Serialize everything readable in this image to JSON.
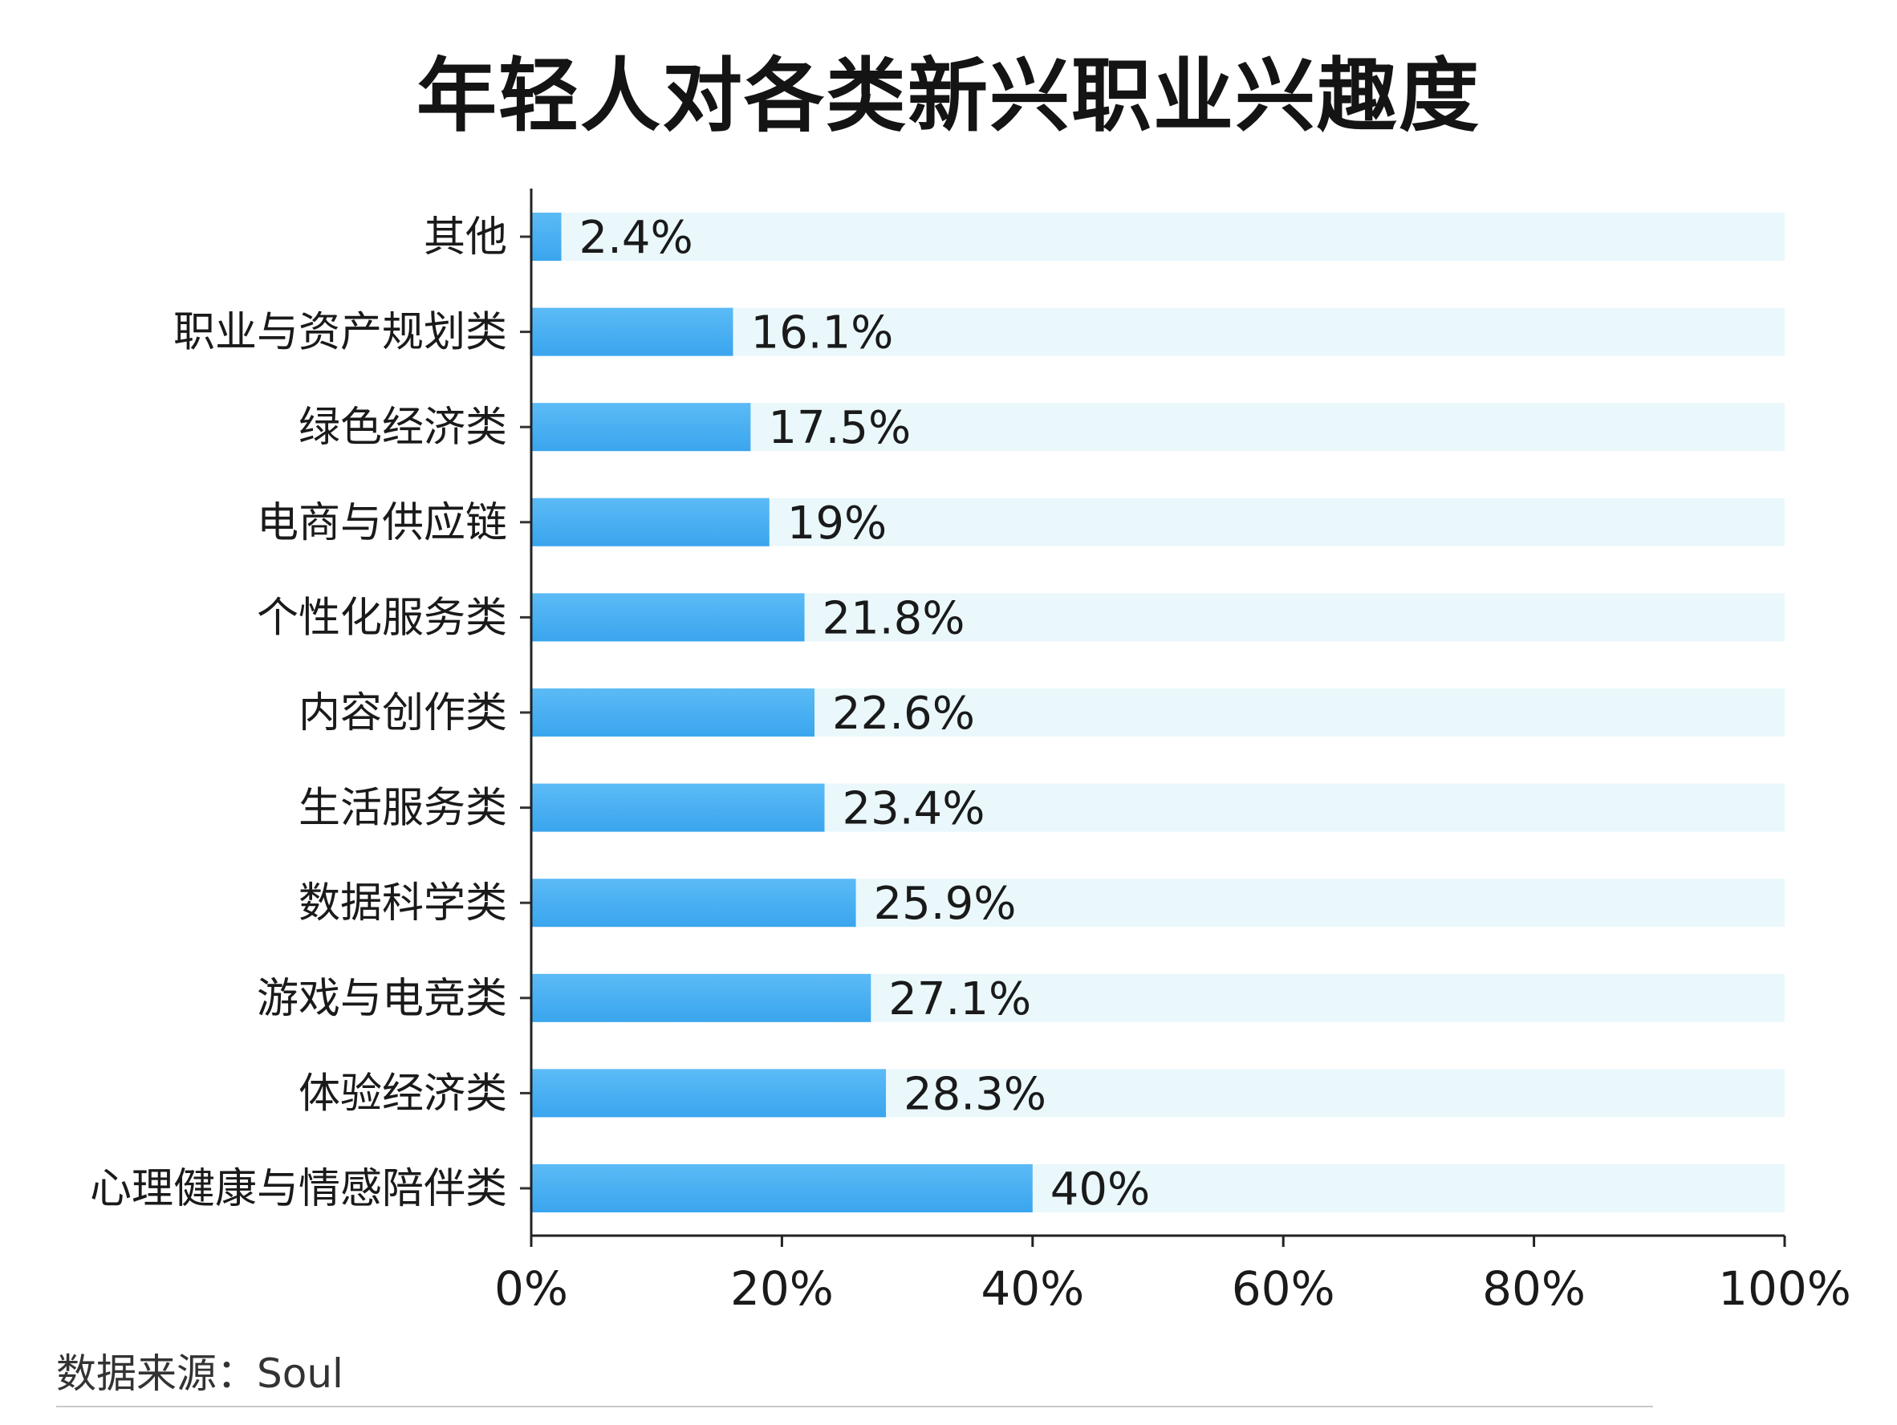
{
  "chart_data": {
    "type": "bar",
    "orientation": "horizontal",
    "title": "年轻人对各类新兴职业兴趣度",
    "categories": [
      "其他",
      "职业与资产规划类",
      "绿色经济类",
      "电商与供应链",
      "个性化服务类",
      "内容创作类",
      "生活服务类",
      "数据科学类",
      "游戏与电竞类",
      "体验经济类",
      "心理健康与情感陪伴类"
    ],
    "values": [
      2.4,
      16.1,
      17.5,
      19,
      21.8,
      22.6,
      23.4,
      25.9,
      27.1,
      28.3,
      40
    ],
    "data_labels": [
      "2.4%",
      "16.1%",
      "17.5%",
      "19%",
      "21.8%",
      "22.6%",
      "23.4%",
      "25.9%",
      "27.1%",
      "28.3%",
      "40%"
    ],
    "xlim": [
      0,
      100
    ],
    "xticks": [
      0,
      20,
      40,
      60,
      80,
      100
    ],
    "xtick_labels": [
      "0%",
      "20%",
      "40%",
      "60%",
      "80%",
      "100%"
    ],
    "xlabel": "",
    "ylabel": "",
    "grid": false,
    "legend": "none",
    "bar_color": "#45ADF2",
    "track_color": "#EAF8FC"
  },
  "source_note": "数据来源：Soul"
}
